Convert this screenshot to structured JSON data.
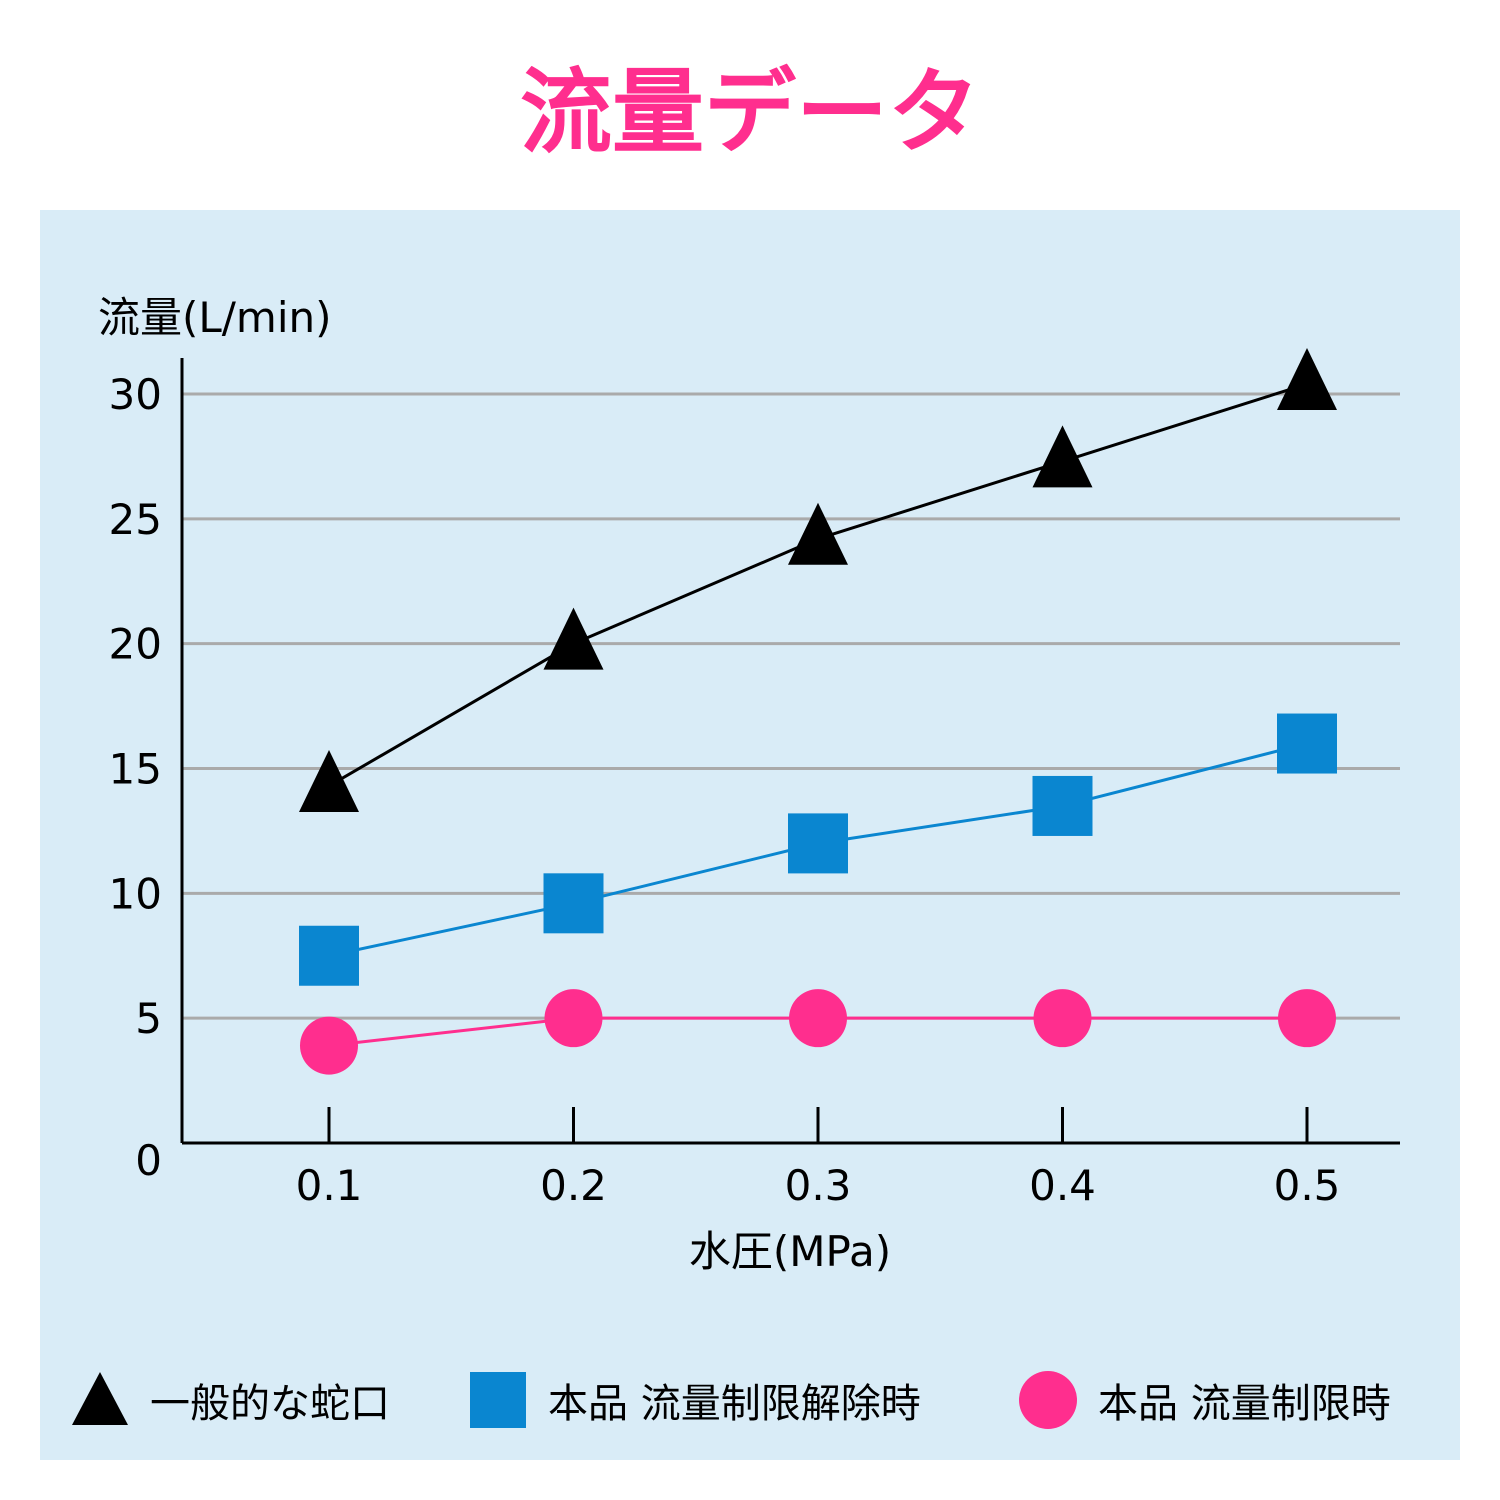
{
  "title": "流量データ",
  "colors": {
    "title": "#ff2e8e",
    "panel_bg": "#d9ecf7",
    "grid": "#aaaaaa",
    "axis": "#000000"
  },
  "chart_data": {
    "type": "line",
    "title": "流量データ",
    "xlabel": "水圧(MPa)",
    "ylabel": "流量(L/min)",
    "categories": [
      "0.1",
      "0.2",
      "0.3",
      "0.4",
      "0.5"
    ],
    "x": [
      0.1,
      0.2,
      0.3,
      0.4,
      0.5
    ],
    "ylim": [
      0,
      30
    ],
    "yticks": [
      0,
      5,
      10,
      15,
      20,
      25,
      30
    ],
    "grid": true,
    "legend_position": "bottom",
    "series": [
      {
        "name": "一般的な蛇口",
        "marker": "triangle",
        "color": "#000000",
        "values": [
          14.3,
          20.0,
          24.2,
          27.3,
          30.4
        ]
      },
      {
        "name": "本品 流量制限解除時",
        "marker": "square",
        "color": "#0a86d0",
        "values": [
          7.5,
          9.6,
          12.0,
          13.5,
          16.0
        ]
      },
      {
        "name": "本品 流量制限時",
        "marker": "circle",
        "color": "#ff2e8e",
        "values": [
          3.9,
          5.0,
          5.0,
          5.0,
          5.0
        ]
      }
    ]
  }
}
